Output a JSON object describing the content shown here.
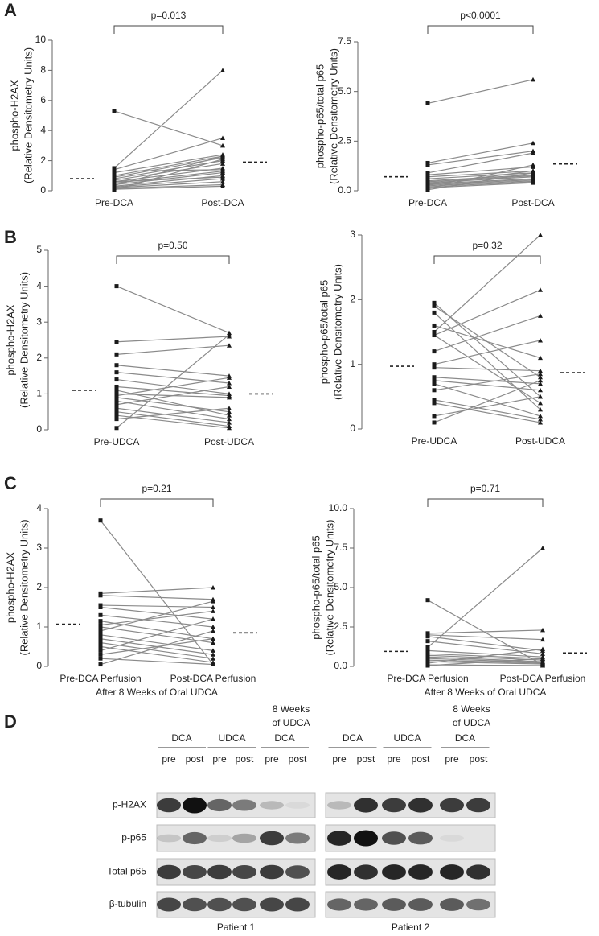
{
  "chart_data": [
    {
      "type": "paired",
      "panel": "A",
      "ylabel": [
        "phospho-H2AX",
        "(Relative Densitometry Units)"
      ],
      "annotation": "p=0.013",
      "categories": [
        "Pre-DCA",
        "Post-DCA"
      ],
      "ylim": [
        0,
        10
      ],
      "yticks": [
        0,
        2,
        4,
        6,
        8,
        10
      ],
      "means": [
        0.8,
        1.9
      ],
      "color": "#8a8a8a",
      "marker_color": "#1a1a1a",
      "series": [
        {
          "values": [
            5.3,
            3.0
          ]
        },
        {
          "values": [
            1.5,
            8.0
          ]
        },
        {
          "values": [
            1.4,
            3.5
          ]
        },
        {
          "values": [
            1.2,
            2.4
          ]
        },
        {
          "values": [
            1.0,
            2.3
          ]
        },
        {
          "values": [
            0.9,
            2.2
          ]
        },
        {
          "values": [
            0.8,
            2.0
          ]
        },
        {
          "values": [
            0.7,
            1.8
          ]
        },
        {
          "values": [
            0.6,
            1.5
          ]
        },
        {
          "values": [
            0.5,
            1.3
          ]
        },
        {
          "values": [
            0.4,
            1.2
          ]
        },
        {
          "values": [
            0.3,
            1.0
          ]
        },
        {
          "values": [
            0.25,
            0.8
          ]
        },
        {
          "values": [
            0.2,
            0.6
          ]
        },
        {
          "values": [
            0.15,
            0.4
          ]
        },
        {
          "values": [
            0.1,
            0.3
          ]
        },
        {
          "values": [
            0.05,
            2.1
          ]
        },
        {
          "values": [
            1.3,
            1.4
          ]
        },
        {
          "values": [
            0.6,
            0.9
          ]
        },
        {
          "values": [
            0.35,
            2.3
          ]
        }
      ]
    },
    {
      "type": "paired",
      "ylabel": [
        "phospho-p65/total p65",
        "(Relative Densitometry Units)"
      ],
      "annotation": "p<0.0001",
      "categories": [
        "Pre-DCA",
        "Post-DCA"
      ],
      "ylim": [
        0,
        7.5
      ],
      "yticks": [
        {
          "value": 0,
          "label": "0.0"
        },
        {
          "value": 2.5,
          "label": "2.5"
        },
        {
          "value": 5,
          "label": "5.0"
        },
        {
          "value": 7.5,
          "label": "7.5"
        }
      ],
      "means": [
        0.7,
        1.35
      ],
      "color": "#8a8a8a",
      "marker_color": "#1a1a1a",
      "series": [
        {
          "values": [
            4.4,
            5.6
          ]
        },
        {
          "values": [
            1.4,
            2.4
          ]
        },
        {
          "values": [
            1.3,
            2.0
          ]
        },
        {
          "values": [
            0.9,
            1.9
          ]
        },
        {
          "values": [
            0.8,
            1.2
          ]
        },
        {
          "values": [
            0.7,
            1.0
          ]
        },
        {
          "values": [
            0.6,
            0.9
          ]
        },
        {
          "values": [
            0.5,
            0.8
          ]
        },
        {
          "values": [
            0.45,
            0.75
          ]
        },
        {
          "values": [
            0.4,
            0.7
          ]
        },
        {
          "values": [
            0.35,
            0.6
          ]
        },
        {
          "values": [
            0.3,
            0.55
          ]
        },
        {
          "values": [
            0.25,
            0.5
          ]
        },
        {
          "values": [
            0.2,
            0.45
          ]
        },
        {
          "values": [
            0.15,
            0.4
          ]
        },
        {
          "values": [
            0.1,
            1.3
          ]
        },
        {
          "values": [
            0.3,
            1.0
          ]
        },
        {
          "values": [
            0.05,
            0.9
          ]
        }
      ]
    },
    {
      "type": "paired",
      "panel": "B",
      "ylabel": [
        "phospho-H2AX",
        "(Relative Densitometry Units)"
      ],
      "annotation": "p=0.50",
      "categories": [
        "Pre-UDCA",
        "Post-UDCA"
      ],
      "ylim": [
        0,
        5
      ],
      "yticks": [
        0,
        1,
        2,
        3,
        4,
        5
      ],
      "means": [
        1.1,
        1.0
      ],
      "color": "#8a8a8a",
      "marker_color": "#1a1a1a",
      "series": [
        {
          "values": [
            4.0,
            2.7
          ]
        },
        {
          "values": [
            2.45,
            2.6
          ]
        },
        {
          "values": [
            2.1,
            2.35
          ]
        },
        {
          "values": [
            1.8,
            1.5
          ]
        },
        {
          "values": [
            1.6,
            1.3
          ]
        },
        {
          "values": [
            1.4,
            1.0
          ]
        },
        {
          "values": [
            1.2,
            0.95
          ]
        },
        {
          "values": [
            1.0,
            0.9
          ]
        },
        {
          "values": [
            0.9,
            0.5
          ]
        },
        {
          "values": [
            0.8,
            0.3
          ]
        },
        {
          "values": [
            0.7,
            1.2
          ]
        },
        {
          "values": [
            0.6,
            0.2
          ]
        },
        {
          "values": [
            0.5,
            0.1
          ]
        },
        {
          "values": [
            0.4,
            0.05
          ]
        },
        {
          "values": [
            0.3,
            0.6
          ]
        },
        {
          "values": [
            0.05,
            2.65
          ]
        },
        {
          "values": [
            0.95,
            1.45
          ]
        },
        {
          "values": [
            1.1,
            0.4
          ]
        }
      ]
    },
    {
      "type": "paired",
      "ylabel": [
        "phospho-p65/total p65",
        "(Relative Densitometry Units)"
      ],
      "annotation": "p=0.32",
      "categories": [
        "Pre-UDCA",
        "Post-UDCA"
      ],
      "ylim": [
        0,
        3
      ],
      "yticks": [
        0,
        1,
        2,
        3
      ],
      "means": [
        0.97,
        0.87
      ],
      "color": "#8a8a8a",
      "marker_color": "#1a1a1a",
      "series": [
        {
          "values": [
            1.95,
            0.5
          ]
        },
        {
          "values": [
            1.9,
            0.8
          ]
        },
        {
          "values": [
            1.8,
            0.3
          ]
        },
        {
          "values": [
            1.6,
            1.1
          ]
        },
        {
          "values": [
            1.5,
            3.0
          ]
        },
        {
          "values": [
            1.45,
            2.15
          ]
        },
        {
          "values": [
            1.2,
            1.75
          ]
        },
        {
          "values": [
            1.0,
            1.37
          ]
        },
        {
          "values": [
            0.95,
            0.9
          ]
        },
        {
          "values": [
            0.8,
            0.7
          ]
        },
        {
          "values": [
            0.75,
            0.6
          ]
        },
        {
          "values": [
            0.7,
            0.2
          ]
        },
        {
          "values": [
            0.6,
            0.85
          ]
        },
        {
          "values": [
            0.45,
            0.15
          ]
        },
        {
          "values": [
            0.4,
            0.1
          ]
        },
        {
          "values": [
            0.2,
            0.5
          ]
        },
        {
          "values": [
            0.1,
            0.75
          ]
        },
        {
          "values": [
            1.45,
            0.4
          ]
        }
      ]
    },
    {
      "type": "paired",
      "panel": "C",
      "ylabel": [
        "phospho-H2AX",
        "(Relative Densitometry Units)"
      ],
      "annotation": "p=0.21",
      "xlabel": "After 8 Weeks of Oral UDCA",
      "categories": [
        "Pre-DCA Perfusion",
        "Post-DCA Perfusion"
      ],
      "ylim": [
        0,
        4
      ],
      "yticks": [
        0,
        1,
        2,
        3,
        4
      ],
      "means": [
        1.07,
        0.85
      ],
      "color": "#8a8a8a",
      "marker_color": "#1a1a1a",
      "series": [
        {
          "values": [
            3.7,
            0.05
          ]
        },
        {
          "values": [
            1.85,
            2.0
          ]
        },
        {
          "values": [
            1.8,
            1.7
          ]
        },
        {
          "values": [
            1.55,
            1.5
          ]
        },
        {
          "values": [
            1.5,
            1.2
          ]
        },
        {
          "values": [
            1.3,
            1.0
          ]
        },
        {
          "values": [
            1.15,
            0.7
          ]
        },
        {
          "values": [
            1.0,
            0.6
          ]
        },
        {
          "values": [
            0.9,
            1.65
          ]
        },
        {
          "values": [
            0.8,
            0.4
          ]
        },
        {
          "values": [
            0.7,
            0.3
          ]
        },
        {
          "values": [
            0.6,
            0.2
          ]
        },
        {
          "values": [
            0.5,
            0.1
          ]
        },
        {
          "values": [
            0.4,
            1.2
          ]
        },
        {
          "values": [
            0.3,
            0.7
          ]
        },
        {
          "values": [
            0.2,
            0.05
          ]
        },
        {
          "values": [
            0.05,
            0.9
          ]
        },
        {
          "values": [
            1.05,
            1.4
          ]
        }
      ]
    },
    {
      "type": "paired",
      "ylabel": [
        "phospho-p65/total p65",
        "(Relative Densitometry Units)"
      ],
      "annotation": "p=0.71",
      "xlabel": "After 8 Weeks of Oral UDCA",
      "categories": [
        "Pre-DCA Perfusion",
        "Post-DCA Perfusion"
      ],
      "ylim": [
        0,
        10
      ],
      "yticks": [
        {
          "value": 0,
          "label": "0.0"
        },
        {
          "value": 2.5,
          "label": "2.5"
        },
        {
          "value": 5,
          "label": "5.0"
        },
        {
          "value": 7.5,
          "label": "7.5"
        },
        {
          "value": 10,
          "label": "10.0"
        }
      ],
      "means": [
        0.95,
        0.85
      ],
      "color": "#8a8a8a",
      "marker_color": "#1a1a1a",
      "series": [
        {
          "values": [
            4.2,
            0.1
          ]
        },
        {
          "values": [
            2.1,
            2.3
          ]
        },
        {
          "values": [
            2.0,
            1.7
          ]
        },
        {
          "values": [
            1.9,
            1.0
          ]
        },
        {
          "values": [
            1.6,
            0.8
          ]
        },
        {
          "values": [
            1.2,
            7.5
          ]
        },
        {
          "values": [
            1.0,
            0.6
          ]
        },
        {
          "values": [
            0.8,
            0.5
          ]
        },
        {
          "values": [
            0.7,
            0.4
          ]
        },
        {
          "values": [
            0.6,
            0.3
          ]
        },
        {
          "values": [
            0.5,
            0.25
          ]
        },
        {
          "values": [
            0.4,
            0.2
          ]
        },
        {
          "values": [
            0.3,
            0.15
          ]
        },
        {
          "values": [
            0.2,
            1.1
          ]
        },
        {
          "values": [
            0.1,
            0.05
          ]
        },
        {
          "values": [
            0.05,
            0.5
          ]
        }
      ]
    }
  ],
  "blot": {
    "panel": "D",
    "week_label": [
      "8 Weeks",
      "of UDCA"
    ],
    "groups": [
      "DCA",
      "UDCA",
      "DCA"
    ],
    "lanes": [
      "pre",
      "post"
    ],
    "patients": [
      "Patient 1",
      "Patient 2"
    ],
    "rows": [
      {
        "label": "p-H2AX",
        "bands": [
          [
            0.8,
            1,
            0.6,
            0.5,
            0.2,
            0.05
          ],
          [
            0.2,
            0.85,
            0.8,
            0.85,
            0.8,
            0.8
          ]
        ]
      },
      {
        "label": "p-p65",
        "bands": [
          [
            0.15,
            0.6,
            0.1,
            0.3,
            0.8,
            0.5
          ],
          [
            0.9,
            1,
            0.7,
            0.65,
            0.05,
            0
          ]
        ]
      },
      {
        "label": "Total p65",
        "bands": [
          [
            0.8,
            0.75,
            0.8,
            0.75,
            0.8,
            0.7
          ],
          [
            0.9,
            0.85,
            0.9,
            0.9,
            0.9,
            0.85
          ]
        ]
      },
      {
        "label": "β-tubulin",
        "bands": [
          [
            0.75,
            0.7,
            0.7,
            0.7,
            0.75,
            0.75
          ],
          [
            0.6,
            0.6,
            0.65,
            0.65,
            0.65,
            0.55
          ]
        ]
      }
    ]
  }
}
